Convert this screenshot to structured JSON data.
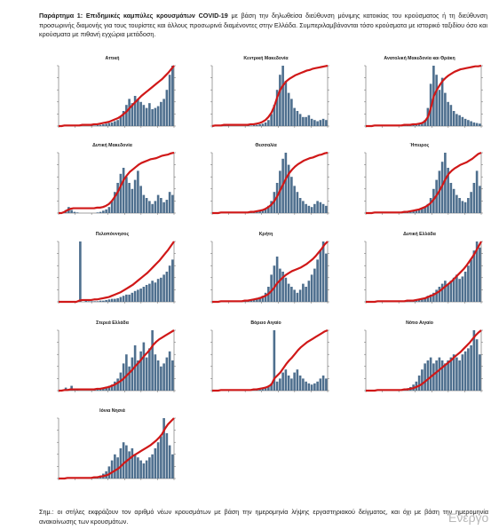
{
  "caption": {
    "label": "Παράρτημα 1:",
    "title": "Επιδημικές καμπύλες κρουσμάτων COVID-19",
    "text": "με βάση την δηλωθείσα διεύθυνση μόνιμης κατοικίας του κρούσματος ή τη διεύθυνση προσωρινής διαμονής για τους τουρίστες και άλλους προσωρινά διαμένοντες στην Ελλάδα. Συμπεριλαμβάνονται τόσο κρούσματα με ιστορικό ταξιδίου όσο και κρούσματα με πιθανή εγχώρια μετάδοση."
  },
  "note": "Σημ.: οι στήλες εκφράζουν τον αριθμό νέων κρουσμάτων με βάση την ημερομηνία λήψης εργαστηριακού δείγματος, και όχι με βάση την ημερομηνία ανακοίνωσης των κρουσμάτων.",
  "watermark": "Ενεργο",
  "colors": {
    "bars": "#4e6f8e",
    "line": "#d01818"
  },
  "chart_data": [
    {
      "type": "bar",
      "title": "Αττική",
      "ylim": [
        0,
        1
      ],
      "y2lim": [
        0,
        1
      ],
      "bars": [
        0,
        0,
        0,
        0.01,
        0.01,
        0,
        0,
        0,
        0,
        0,
        0,
        0.01,
        0.01,
        0.02,
        0.02,
        0.03,
        0.04,
        0.05,
        0.06,
        0.08,
        0.1,
        0.15,
        0.25,
        0.35,
        0.45,
        0.38,
        0.5,
        0.45,
        0.4,
        0.35,
        0.3,
        0.38,
        0.28,
        0.3,
        0.33,
        0.4,
        0.45,
        0.6,
        0.85,
        1.0
      ],
      "cumulative": [
        0,
        0,
        0.01,
        0.01,
        0.01,
        0.01,
        0.01,
        0.01,
        0.02,
        0.02,
        0.02,
        0.02,
        0.03,
        0.03,
        0.04,
        0.05,
        0.06,
        0.07,
        0.09,
        0.11,
        0.13,
        0.16,
        0.2,
        0.24,
        0.3,
        0.35,
        0.4,
        0.45,
        0.5,
        0.54,
        0.58,
        0.62,
        0.66,
        0.7,
        0.74,
        0.78,
        0.83,
        0.88,
        0.94,
        1.0
      ]
    },
    {
      "type": "bar",
      "title": "Κεντρική Μακεδονία",
      "ylim": [
        0,
        1
      ],
      "y2lim": [
        0,
        1
      ],
      "bars": [
        0,
        0,
        0.01,
        0.02,
        0.01,
        0.01,
        0,
        0,
        0,
        0,
        0,
        0,
        0.01,
        0.01,
        0.02,
        0.02,
        0.03,
        0.04,
        0.06,
        0.1,
        0.2,
        0.35,
        0.6,
        0.85,
        1.0,
        0.75,
        0.55,
        0.45,
        0.3,
        0.25,
        0.2,
        0.15,
        0.15,
        0.18,
        0.12,
        0.1,
        0.08,
        0.1,
        0.12,
        0.1
      ],
      "cumulative": [
        0,
        0.01,
        0.01,
        0.01,
        0.02,
        0.02,
        0.02,
        0.02,
        0.02,
        0.02,
        0.02,
        0.02,
        0.02,
        0.03,
        0.03,
        0.04,
        0.05,
        0.07,
        0.1,
        0.15,
        0.22,
        0.33,
        0.48,
        0.6,
        0.68,
        0.74,
        0.78,
        0.81,
        0.84,
        0.86,
        0.88,
        0.9,
        0.92,
        0.93,
        0.95,
        0.96,
        0.97,
        0.98,
        0.99,
        1.0
      ]
    },
    {
      "type": "bar",
      "title": "Ανατολική Μακεδονία και Θράκη",
      "ylim": [
        0,
        1
      ],
      "y2lim": [
        0,
        1
      ],
      "bars": [
        0,
        0,
        0,
        0.01,
        0.01,
        0,
        0,
        0,
        0,
        0,
        0,
        0,
        0.01,
        0.01,
        0.01,
        0.01,
        0.02,
        0.02,
        0.03,
        0.05,
        0.1,
        0.3,
        0.7,
        1.0,
        0.85,
        0.6,
        0.8,
        0.55,
        0.4,
        0.35,
        0.25,
        0.2,
        0.18,
        0.15,
        0.12,
        0.1,
        0.08,
        0.06,
        0.05,
        0.04
      ],
      "cumulative": [
        0,
        0,
        0,
        0.01,
        0.01,
        0.01,
        0.01,
        0.01,
        0.01,
        0.01,
        0.01,
        0.01,
        0.01,
        0.02,
        0.02,
        0.02,
        0.03,
        0.03,
        0.04,
        0.05,
        0.08,
        0.15,
        0.3,
        0.5,
        0.6,
        0.68,
        0.75,
        0.8,
        0.84,
        0.87,
        0.9,
        0.92,
        0.94,
        0.95,
        0.96,
        0.97,
        0.98,
        0.99,
        0.99,
        1.0
      ]
    },
    {
      "type": "bar",
      "title": "Δυτική Μακεδονία",
      "ylim": [
        0,
        1
      ],
      "y2lim": [
        0,
        1
      ],
      "bars": [
        0,
        0,
        0.05,
        0.1,
        0.05,
        0.02,
        0.01,
        0,
        0,
        0,
        0,
        0,
        0,
        0.01,
        0.02,
        0.04,
        0.06,
        0.1,
        0.2,
        0.35,
        0.5,
        0.65,
        0.75,
        0.6,
        0.5,
        0.4,
        0.55,
        0.7,
        0.45,
        0.3,
        0.25,
        0.2,
        0.15,
        0.2,
        0.3,
        0.25,
        0.18,
        0.22,
        0.35,
        0.3
      ],
      "cumulative": [
        0,
        0,
        0.02,
        0.05,
        0.07,
        0.08,
        0.08,
        0.08,
        0.08,
        0.08,
        0.08,
        0.08,
        0.08,
        0.09,
        0.09,
        0.1,
        0.12,
        0.15,
        0.2,
        0.27,
        0.35,
        0.45,
        0.55,
        0.62,
        0.68,
        0.72,
        0.76,
        0.8,
        0.83,
        0.85,
        0.87,
        0.89,
        0.9,
        0.91,
        0.93,
        0.95,
        0.96,
        0.97,
        0.99,
        1.0
      ]
    },
    {
      "type": "bar",
      "title": "Θεσσαλία",
      "ylim": [
        0,
        1
      ],
      "y2lim": [
        0,
        1
      ],
      "bars": [
        0,
        0,
        0,
        0.01,
        0.01,
        0,
        0,
        0,
        0,
        0,
        0,
        0,
        0.01,
        0.01,
        0.02,
        0.03,
        0.04,
        0.05,
        0.08,
        0.12,
        0.2,
        0.35,
        0.5,
        0.7,
        0.9,
        1.0,
        0.8,
        0.6,
        0.45,
        0.35,
        0.25,
        0.2,
        0.15,
        0.12,
        0.1,
        0.15,
        0.2,
        0.18,
        0.15,
        0.12
      ],
      "cumulative": [
        0,
        0,
        0,
        0.01,
        0.01,
        0.01,
        0.01,
        0.01,
        0.01,
        0.01,
        0.01,
        0.01,
        0.01,
        0.02,
        0.02,
        0.03,
        0.04,
        0.05,
        0.07,
        0.1,
        0.14,
        0.2,
        0.28,
        0.38,
        0.48,
        0.58,
        0.66,
        0.72,
        0.77,
        0.81,
        0.84,
        0.87,
        0.89,
        0.91,
        0.92,
        0.94,
        0.96,
        0.97,
        0.99,
        1.0
      ]
    },
    {
      "type": "bar",
      "title": "Ήπειρος",
      "ylim": [
        0,
        1
      ],
      "y2lim": [
        0,
        1
      ],
      "bars": [
        0,
        0,
        0,
        0.01,
        0.01,
        0,
        0,
        0,
        0,
        0,
        0,
        0,
        0.01,
        0.01,
        0.02,
        0.02,
        0.03,
        0.04,
        0.05,
        0.07,
        0.1,
        0.15,
        0.25,
        0.4,
        0.55,
        0.7,
        0.85,
        1.0,
        0.75,
        0.5,
        0.4,
        0.3,
        0.25,
        0.2,
        0.18,
        0.25,
        0.35,
        0.5,
        0.7,
        0.45
      ],
      "cumulative": [
        0,
        0,
        0,
        0.01,
        0.01,
        0.01,
        0.01,
        0.01,
        0.01,
        0.01,
        0.01,
        0.01,
        0.01,
        0.02,
        0.02,
        0.03,
        0.04,
        0.05,
        0.06,
        0.08,
        0.1,
        0.13,
        0.17,
        0.23,
        0.3,
        0.38,
        0.47,
        0.57,
        0.65,
        0.7,
        0.74,
        0.77,
        0.8,
        0.82,
        0.84,
        0.87,
        0.9,
        0.94,
        0.98,
        1.0
      ]
    },
    {
      "type": "bar",
      "title": "Πελοπόννησος",
      "ylim": [
        0,
        1
      ],
      "y2lim": [
        0,
        1
      ],
      "bars": [
        0,
        0,
        0,
        0,
        0,
        0,
        0,
        1.0,
        0,
        0.02,
        0.01,
        0.01,
        0.01,
        0.01,
        0.02,
        0.02,
        0.03,
        0.04,
        0.05,
        0.05,
        0.06,
        0.08,
        0.1,
        0.12,
        0.12,
        0.15,
        0.18,
        0.2,
        0.22,
        0.25,
        0.28,
        0.3,
        0.35,
        0.32,
        0.38,
        0.4,
        0.45,
        0.5,
        0.6,
        0.7
      ],
      "cumulative": [
        0,
        0,
        0,
        0,
        0,
        0,
        0,
        0.02,
        0.03,
        0.03,
        0.03,
        0.03,
        0.04,
        0.04,
        0.05,
        0.06,
        0.07,
        0.08,
        0.1,
        0.12,
        0.14,
        0.16,
        0.19,
        0.22,
        0.25,
        0.28,
        0.32,
        0.36,
        0.4,
        0.44,
        0.48,
        0.53,
        0.58,
        0.63,
        0.68,
        0.74,
        0.8,
        0.86,
        0.93,
        1.0
      ]
    },
    {
      "type": "bar",
      "title": "Κρήτη",
      "ylim": [
        0,
        1
      ],
      "y2lim": [
        0,
        1
      ],
      "bars": [
        0,
        0,
        0,
        0.01,
        0.01,
        0,
        0,
        0,
        0,
        0,
        0,
        0.02,
        0.03,
        0.04,
        0.05,
        0.06,
        0.08,
        0.1,
        0.15,
        0.25,
        0.45,
        0.6,
        0.75,
        0.55,
        0.5,
        0.4,
        0.3,
        0.25,
        0.2,
        0.15,
        0.2,
        0.3,
        0.25,
        0.35,
        0.45,
        0.55,
        0.7,
        0.85,
        1.0,
        0.8
      ],
      "cumulative": [
        0,
        0,
        0,
        0.01,
        0.01,
        0.01,
        0.01,
        0.01,
        0.01,
        0.01,
        0.01,
        0.02,
        0.02,
        0.03,
        0.04,
        0.05,
        0.06,
        0.08,
        0.1,
        0.13,
        0.18,
        0.24,
        0.31,
        0.36,
        0.41,
        0.45,
        0.48,
        0.51,
        0.53,
        0.55,
        0.57,
        0.6,
        0.63,
        0.67,
        0.71,
        0.76,
        0.82,
        0.88,
        0.95,
        1.0
      ]
    },
    {
      "type": "bar",
      "title": "Δυτική Ελλάδα",
      "ylim": [
        0,
        1
      ],
      "y2lim": [
        0,
        1
      ],
      "bars": [
        0,
        0,
        0,
        0.01,
        0.01,
        0,
        0,
        0,
        0,
        0,
        0,
        0,
        0.01,
        0.01,
        0.01,
        0.02,
        0.02,
        0.03,
        0.04,
        0.05,
        0.07,
        0.1,
        0.12,
        0.15,
        0.2,
        0.25,
        0.3,
        0.35,
        0.3,
        0.35,
        0.4,
        0.45,
        0.38,
        0.42,
        0.5,
        0.6,
        0.7,
        0.85,
        1.0,
        0.9
      ],
      "cumulative": [
        0,
        0,
        0,
        0,
        0.01,
        0.01,
        0.01,
        0.01,
        0.01,
        0.01,
        0.01,
        0.01,
        0.01,
        0.01,
        0.02,
        0.02,
        0.02,
        0.03,
        0.04,
        0.05,
        0.06,
        0.08,
        0.1,
        0.12,
        0.15,
        0.18,
        0.22,
        0.26,
        0.3,
        0.34,
        0.39,
        0.44,
        0.49,
        0.54,
        0.6,
        0.67,
        0.74,
        0.82,
        0.91,
        1.0
      ]
    },
    {
      "type": "bar",
      "title": "Στερεά Ελλάδα",
      "ylim": [
        0,
        1
      ],
      "y2lim": [
        0,
        1
      ],
      "bars": [
        0,
        0,
        0.05,
        0.02,
        0.08,
        0.03,
        0.01,
        0,
        0,
        0,
        0,
        0,
        0.01,
        0.02,
        0.03,
        0.04,
        0.06,
        0.08,
        0.1,
        0.15,
        0.2,
        0.3,
        0.45,
        0.6,
        0.4,
        0.55,
        0.75,
        0.5,
        0.65,
        0.8,
        0.55,
        0.7,
        1.0,
        0.6,
        0.5,
        0.4,
        0.45,
        0.55,
        0.65,
        0.5
      ],
      "cumulative": [
        0,
        0,
        0.01,
        0.01,
        0.02,
        0.02,
        0.02,
        0.02,
        0.02,
        0.02,
        0.02,
        0.02,
        0.02,
        0.03,
        0.03,
        0.04,
        0.05,
        0.06,
        0.08,
        0.1,
        0.13,
        0.16,
        0.2,
        0.25,
        0.3,
        0.35,
        0.41,
        0.46,
        0.52,
        0.58,
        0.63,
        0.69,
        0.76,
        0.81,
        0.85,
        0.88,
        0.91,
        0.94,
        0.97,
        1.0
      ]
    },
    {
      "type": "bar",
      "title": "Βόρειο Αιγαίο",
      "ylim": [
        0,
        1
      ],
      "y2lim": [
        0,
        1
      ],
      "bars": [
        0,
        0,
        0,
        0.01,
        0.01,
        0,
        0,
        0,
        0,
        0,
        0,
        0,
        0,
        0.01,
        0.01,
        0.02,
        0.02,
        0.03,
        0.05,
        0.08,
        0.12,
        1.0,
        0.15,
        0.2,
        0.3,
        0.35,
        0.25,
        0.2,
        0.3,
        0.35,
        0.25,
        0.2,
        0.15,
        0.12,
        0.1,
        0.12,
        0.15,
        0.2,
        0.25,
        0.2
      ],
      "cumulative": [
        0,
        0,
        0,
        0.01,
        0.01,
        0.01,
        0.01,
        0.01,
        0.01,
        0.01,
        0.01,
        0.01,
        0.01,
        0.01,
        0.02,
        0.02,
        0.03,
        0.04,
        0.05,
        0.07,
        0.1,
        0.2,
        0.25,
        0.3,
        0.37,
        0.44,
        0.5,
        0.55,
        0.61,
        0.67,
        0.72,
        0.76,
        0.8,
        0.83,
        0.86,
        0.89,
        0.92,
        0.95,
        0.98,
        1.0
      ]
    },
    {
      "type": "bar",
      "title": "Νότιο Αιγαίο",
      "ylim": [
        0,
        1
      ],
      "y2lim": [
        0,
        1
      ],
      "bars": [
        0,
        0,
        0,
        0.01,
        0.01,
        0,
        0,
        0,
        0,
        0,
        0,
        0,
        0.01,
        0.02,
        0.04,
        0.06,
        0.1,
        0.15,
        0.25,
        0.35,
        0.45,
        0.5,
        0.55,
        0.45,
        0.5,
        0.55,
        0.5,
        0.45,
        0.5,
        0.55,
        0.6,
        0.55,
        0.5,
        0.6,
        0.65,
        0.7,
        0.75,
        1.0,
        0.85,
        0.6
      ],
      "cumulative": [
        0,
        0,
        0,
        0,
        0.01,
        0.01,
        0.01,
        0.01,
        0.01,
        0.01,
        0.01,
        0.01,
        0.01,
        0.02,
        0.02,
        0.03,
        0.04,
        0.06,
        0.08,
        0.11,
        0.15,
        0.19,
        0.23,
        0.27,
        0.31,
        0.35,
        0.39,
        0.43,
        0.47,
        0.51,
        0.56,
        0.6,
        0.64,
        0.69,
        0.74,
        0.79,
        0.85,
        0.91,
        0.96,
        1.0
      ]
    },
    {
      "type": "bar",
      "title": "Ιόνια Νησιά",
      "ylim": [
        0,
        1
      ],
      "y2lim": [
        0,
        1
      ],
      "bars": [
        0,
        0,
        0,
        0.01,
        0.01,
        0,
        0,
        0,
        0,
        0,
        0,
        0.01,
        0.02,
        0.03,
        0.05,
        0.08,
        0.12,
        0.2,
        0.3,
        0.4,
        0.35,
        0.5,
        0.6,
        0.55,
        0.45,
        0.5,
        0.4,
        0.35,
        0.3,
        0.25,
        0.3,
        0.35,
        0.4,
        0.5,
        0.6,
        0.7,
        1.0,
        0.75,
        0.55,
        0.4
      ],
      "cumulative": [
        0,
        0,
        0,
        0.01,
        0.01,
        0.01,
        0.01,
        0.01,
        0.01,
        0.01,
        0.01,
        0.01,
        0.02,
        0.02,
        0.03,
        0.04,
        0.05,
        0.07,
        0.1,
        0.13,
        0.16,
        0.2,
        0.25,
        0.29,
        0.33,
        0.37,
        0.4,
        0.43,
        0.46,
        0.49,
        0.52,
        0.55,
        0.59,
        0.63,
        0.68,
        0.74,
        0.83,
        0.9,
        0.95,
        1.0
      ]
    }
  ]
}
